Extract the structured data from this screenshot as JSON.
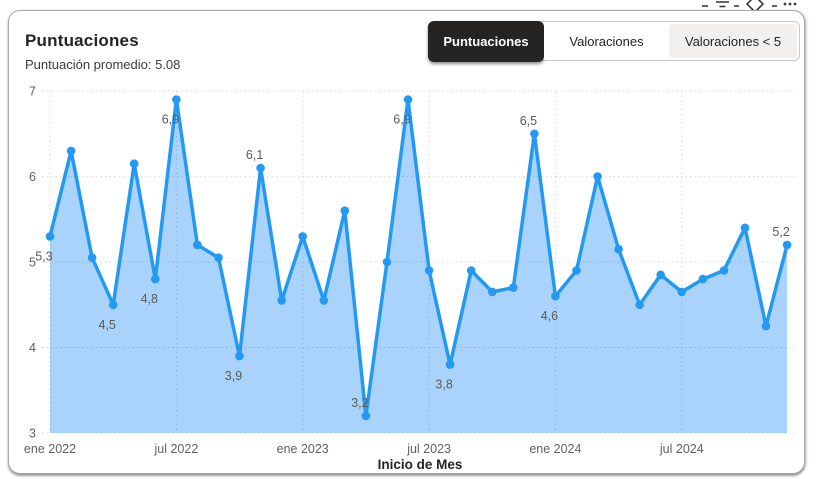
{
  "header": {
    "title": "Puntuaciones",
    "subtitle": "Puntuación promedio: 5.08"
  },
  "toolbar": {
    "icons": [
      "filter-icon",
      "eraser-icon",
      "more-options-icon"
    ]
  },
  "tabs": {
    "items": [
      {
        "label": "Puntuaciones",
        "active": true
      },
      {
        "label": "Valoraciones",
        "active": false
      },
      {
        "label": "Valoraciones < 5",
        "active": false
      }
    ]
  },
  "colors": {
    "line": "#2499F2",
    "area": "#A9D3FB",
    "marker": "#2499F2",
    "gridline": "rgba(0,0,0,0.15)",
    "tick_text": "#616161",
    "data_label": "#5a5a5a",
    "axis_title": "#252423",
    "active_tab_bg": "#252423"
  },
  "chart_data": {
    "type": "area",
    "title": "Puntuaciones",
    "xlabel": "Inicio de Mes",
    "ylabel": "",
    "ylim": [
      3,
      7
    ],
    "grid": true,
    "legend": false,
    "x": [
      "ene 2022",
      "feb 2022",
      "mar 2022",
      "abr 2022",
      "may 2022",
      "jun 2022",
      "jul 2022",
      "ago 2022",
      "sep 2022",
      "oct 2022",
      "nov 2022",
      "dic 2022",
      "ene 2023",
      "feb 2023",
      "mar 2023",
      "abr 2023",
      "may 2023",
      "jun 2023",
      "jul 2023",
      "ago 2023",
      "sep 2023",
      "oct 2023",
      "nov 2023",
      "dic 2023",
      "ene 2024",
      "feb 2024",
      "mar 2024",
      "abr 2024",
      "may 2024",
      "jun 2024",
      "jul 2024",
      "ago 2024",
      "sep 2024",
      "oct 2024",
      "nov 2024",
      "dic 2024"
    ],
    "values": [
      5.3,
      6.3,
      5.05,
      4.5,
      6.15,
      4.8,
      6.9,
      5.2,
      5.05,
      3.9,
      6.1,
      4.55,
      5.3,
      4.55,
      5.6,
      3.2,
      5.0,
      6.9,
      4.9,
      3.8,
      4.9,
      4.65,
      4.7,
      6.5,
      4.6,
      4.9,
      6.0,
      5.15,
      4.5,
      4.85,
      4.65,
      4.8,
      4.9,
      5.4,
      4.25,
      5.2
    ],
    "x_tick_indices": [
      0,
      6,
      12,
      18,
      24,
      30
    ],
    "y_ticks": [
      3,
      4,
      5,
      6,
      7
    ],
    "point_labels": [
      {
        "index": 0,
        "text": "5,3",
        "placement": "below"
      },
      {
        "index": 3,
        "text": "4,5",
        "placement": "below"
      },
      {
        "index": 5,
        "text": "4,8",
        "placement": "below"
      },
      {
        "index": 6,
        "text": "6,9",
        "placement": "below"
      },
      {
        "index": 9,
        "text": "3,9",
        "placement": "below"
      },
      {
        "index": 10,
        "text": "6,1",
        "placement": "above"
      },
      {
        "index": 15,
        "text": "3,2",
        "placement": "above"
      },
      {
        "index": 17,
        "text": "6,9",
        "placement": "below"
      },
      {
        "index": 19,
        "text": "3,8",
        "placement": "below"
      },
      {
        "index": 23,
        "text": "6,5",
        "placement": "above"
      },
      {
        "index": 24,
        "text": "4,6",
        "placement": "below"
      },
      {
        "index": 35,
        "text": "5,2",
        "placement": "above"
      }
    ]
  }
}
